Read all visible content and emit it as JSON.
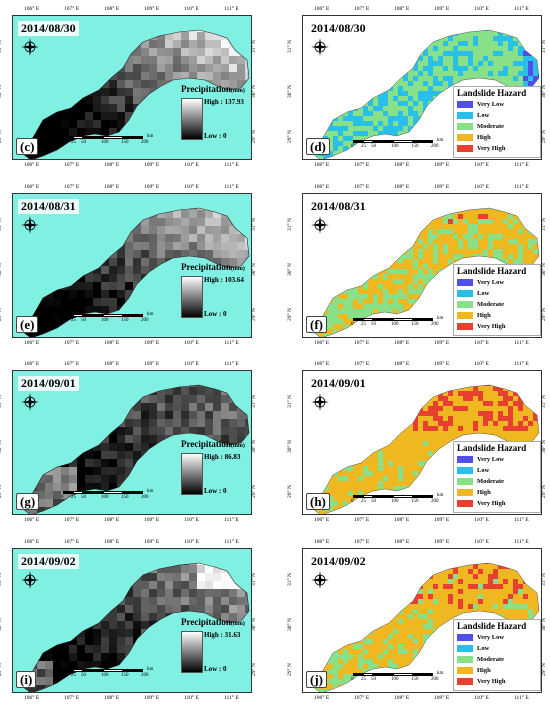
{
  "axes": {
    "lon_ticks": [
      "106° E",
      "107° E",
      "108° E",
      "109° E",
      "110° E",
      "111° E"
    ],
    "lat_ticks": [
      "31° N",
      "30° N",
      "29° N"
    ]
  },
  "scale": {
    "labels": [
      "0",
      "25",
      "50",
      "100",
      "150",
      "200"
    ],
    "unit": "km"
  },
  "precipitation_legend": {
    "title": "Precipitation",
    "unit": "(mm)",
    "low": "Low : 0"
  },
  "hazard_legend": {
    "title": "Landslide Hazard",
    "classes": [
      {
        "label": "Very Low",
        "color": "#5050e8"
      },
      {
        "label": "Low",
        "color": "#28c0e8"
      },
      {
        "label": "Moderate",
        "color": "#88e088"
      },
      {
        "label": "High",
        "color": "#f0b820"
      },
      {
        "label": "Very High",
        "color": "#e84030"
      }
    ]
  },
  "panels": [
    {
      "date": "2014/08/30",
      "precip_letter": "(c)",
      "hazard_letter": "(d)",
      "precip_high": "High : 137.93",
      "precip_level": 0.55,
      "hazard_level": 0.15
    },
    {
      "date": "2014/08/31",
      "precip_letter": "(e)",
      "hazard_letter": "(f)",
      "precip_high": "High : 103.64",
      "precip_level": 0.45,
      "hazard_level": 0.55
    },
    {
      "date": "2014/09/01",
      "precip_letter": "(g)",
      "hazard_letter": "(h)",
      "precip_high": "High : 86.83",
      "precip_level": 0.15,
      "hazard_level": 0.8
    },
    {
      "date": "2014/09/02",
      "precip_letter": "(i)",
      "hazard_letter": "(j)",
      "precip_high": "High : 31.63",
      "precip_level": 0.3,
      "hazard_level": 0.7
    }
  ]
}
